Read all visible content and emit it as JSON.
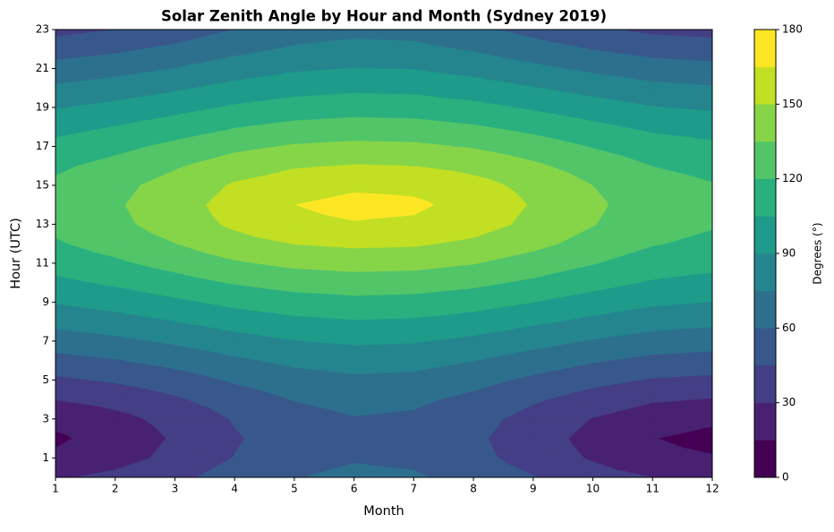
{
  "chart_data": {
    "type": "contourf",
    "title": "Solar Zenith Angle by Hour and Month (Sydney 2019)",
    "x_label": "Month",
    "y_label": "Hour (UTC)",
    "colorbar_label": "Degrees (°)",
    "x": [
      1,
      2,
      3,
      4,
      5,
      6,
      7,
      8,
      9,
      10,
      11,
      12
    ],
    "y": [
      0,
      1,
      2,
      3,
      4,
      5,
      6,
      7,
      8,
      9,
      10,
      11,
      12,
      13,
      14,
      15,
      16,
      17,
      18,
      19,
      20,
      21,
      22,
      23
    ],
    "z": [
      [
        28.3,
        33.5,
        41.4,
        51.4,
        59.4,
        63.4,
        61.8,
        55.0,
        45.6,
        36.7,
        29.9,
        27.3
      ],
      [
        17.5,
        24.4,
        34.0,
        45.4,
        54.3,
        58.7,
        56.9,
        49.4,
        38.9,
        28.4,
        19.7,
        16.0
      ],
      [
        12.6,
        21.0,
        31.5,
        43.5,
        52.7,
        57.2,
        55.4,
        47.7,
        36.7,
        25.4,
        15.4,
        10.6
      ],
      [
        19.0,
        25.6,
        34.9,
        46.1,
        54.9,
        59.2,
        57.5,
        50.1,
        39.7,
        29.4,
        21.1,
        17.7
      ],
      [
        30.2,
        35.2,
        42.9,
        52.6,
        60.5,
        64.4,
        62.8,
        56.2,
        47.0,
        38.3,
        31.8,
        29.2
      ],
      [
        42.4,
        46.8,
        53.3,
        61.7,
        68.6,
        72.1,
        70.7,
        64.8,
        56.9,
        49.4,
        43.8,
        41.6
      ],
      [
        54.9,
        59.0,
        65.0,
        72.5,
        78.5,
        81.5,
        80.3,
        75.2,
        68.1,
        61.4,
        56.2,
        54.0
      ],
      [
        67.2,
        71.5,
        77.2,
        84.1,
        89.5,
        92.2,
        91.1,
        86.6,
        80.2,
        73.8,
        68.6,
        66.3
      ],
      [
        79.3,
        83.8,
        89.7,
        96.3,
        101.3,
        103.7,
        102.7,
        98.6,
        92.6,
        86.3,
        80.8,
        78.2
      ],
      [
        90.8,
        95.8,
        102.0,
        108.7,
        113.5,
        115.7,
        114.8,
        111.0,
        105.0,
        98.4,
        92.5,
        89.6
      ],
      [
        101.4,
        107.2,
        114.0,
        121.1,
        125.9,
        128.0,
        127.2,
        123.4,
        117.2,
        110.1,
        103.4,
        100.1
      ],
      [
        110.8,
        117.4,
        125.1,
        133.2,
        138.3,
        140.4,
        139.6,
        135.6,
        128.7,
        120.7,
        113.0,
        109.3
      ],
      [
        118.4,
        125.8,
        134.7,
        144.1,
        150.3,
        152.7,
        151.8,
        147.1,
        138.9,
        129.6,
        120.9,
        116.6
      ],
      [
        123.3,
        131.4,
        141.5,
        152.6,
        160.6,
        164.0,
        162.6,
        156.3,
        146.4,
        135.6,
        126.0,
        121.3
      ],
      [
        124.8,
        133.2,
        143.7,
        155.7,
        164.9,
        169.4,
        167.6,
        159.9,
        148.9,
        137.6,
        127.6,
        122.8
      ],
      [
        122.7,
        130.8,
        140.7,
        151.6,
        159.2,
        162.3,
        161.1,
        155.1,
        145.4,
        134.9,
        125.4,
        120.8
      ],
      [
        117.3,
        124.6,
        133.3,
        142.5,
        148.4,
        150.8,
        149.9,
        145.3,
        137.4,
        128.3,
        119.8,
        115.6
      ],
      [
        109.4,
        115.8,
        123.4,
        131.3,
        136.4,
        138.4,
        137.6,
        133.7,
        127.0,
        119.1,
        111.6,
        107.9
      ],
      [
        99.8,
        105.4,
        112.1,
        119.2,
        123.9,
        126.0,
        125.2,
        121.4,
        115.3,
        108.3,
        101.7,
        98.5
      ],
      [
        89.0,
        93.9,
        100.1,
        106.8,
        111.5,
        113.7,
        112.9,
        109.0,
        103.0,
        96.5,
        90.6,
        87.8
      ],
      [
        77.4,
        81.9,
        87.7,
        94.4,
        99.4,
        101.8,
        100.8,
        96.7,
        90.6,
        84.3,
        78.9,
        76.3
      ],
      [
        65.3,
        69.5,
        75.2,
        82.2,
        87.7,
        90.4,
        89.4,
        84.7,
        78.2,
        71.9,
        66.6,
        64.3
      ],
      [
        52.9,
        57.1,
        63.1,
        70.7,
        76.8,
        79.9,
        78.7,
        73.5,
        66.3,
        59.5,
        54.2,
        52.0
      ],
      [
        40.5,
        44.9,
        51.5,
        60.1,
        67.2,
        70.7,
        69.3,
        63.3,
        55.2,
        47.5,
        41.8,
        39.6
      ]
    ],
    "levels": [
      0,
      15,
      30,
      45,
      60,
      75,
      90,
      105,
      120,
      135,
      150,
      165,
      180
    ],
    "colors": [
      "#440154",
      "#482173",
      "#433e85",
      "#38588c",
      "#2d708e",
      "#25858e",
      "#1e9b8a",
      "#2ab07f",
      "#52c569",
      "#86d549",
      "#c2df23",
      "#fde725"
    ],
    "xlim": [
      1,
      12
    ],
    "ylim": [
      0,
      23
    ],
    "xticks": [
      1,
      2,
      3,
      4,
      5,
      6,
      7,
      8,
      9,
      10,
      11,
      12
    ],
    "yticks": [
      1,
      3,
      5,
      7,
      9,
      11,
      13,
      15,
      17,
      19,
      21,
      23
    ],
    "colorbar_ticks": [
      0,
      30,
      60,
      90,
      120,
      150,
      180
    ]
  }
}
